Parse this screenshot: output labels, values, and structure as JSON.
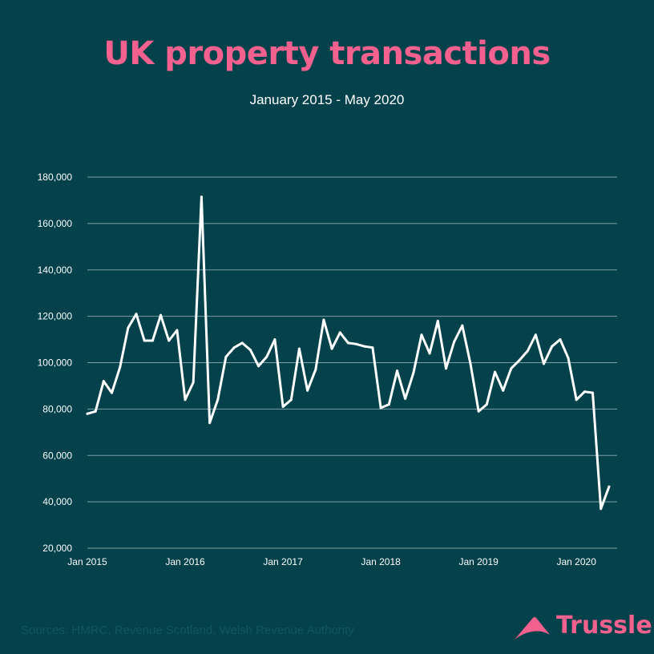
{
  "title": "UK property transactions",
  "subtitle": "January 2015 - May 2020",
  "source": "Sources: HMRC, Revenue Scotland, Welsh Revenue Authority",
  "brand": {
    "name": "Trussle",
    "color": "#f4618f",
    "icon": "trussle-roof-icon"
  },
  "colors": {
    "background": "#03414b",
    "title": "#f4618f",
    "line": "#ffffff",
    "grid": "#7f9ea3",
    "text": "#ffffff"
  },
  "chart_data": {
    "type": "line",
    "title": "",
    "xlabel": "",
    "ylabel": "",
    "ylim": [
      20000,
      180000
    ],
    "yticks": [
      20000,
      40000,
      60000,
      80000,
      100000,
      120000,
      140000,
      160000,
      180000
    ],
    "ytick_labels": [
      "20,000",
      "40,000",
      "60,000",
      "80,000",
      "100,000",
      "120,000",
      "140,000",
      "160,000",
      "180,000"
    ],
    "xtick_labels": [
      "Jan 2015",
      "Jan 2016",
      "Jan 2017",
      "Jan 2018",
      "Jan 2019",
      "Jan 2020"
    ],
    "grid": true,
    "legend": "none",
    "x": [
      "2015-01",
      "2015-02",
      "2015-03",
      "2015-04",
      "2015-05",
      "2015-06",
      "2015-07",
      "2015-08",
      "2015-09",
      "2015-10",
      "2015-11",
      "2015-12",
      "2016-01",
      "2016-02",
      "2016-03",
      "2016-04",
      "2016-05",
      "2016-06",
      "2016-07",
      "2016-08",
      "2016-09",
      "2016-10",
      "2016-11",
      "2016-12",
      "2017-01",
      "2017-02",
      "2017-03",
      "2017-04",
      "2017-05",
      "2017-06",
      "2017-07",
      "2017-08",
      "2017-09",
      "2017-10",
      "2017-11",
      "2017-12",
      "2018-01",
      "2018-02",
      "2018-03",
      "2018-04",
      "2018-05",
      "2018-06",
      "2018-07",
      "2018-08",
      "2018-09",
      "2018-10",
      "2018-11",
      "2018-12",
      "2019-01",
      "2019-02",
      "2019-03",
      "2019-04",
      "2019-05",
      "2019-06",
      "2019-07",
      "2019-08",
      "2019-09",
      "2019-10",
      "2019-11",
      "2019-12",
      "2020-01",
      "2020-02",
      "2020-03",
      "2020-04",
      "2020-05"
    ],
    "series": [
      {
        "values": [
          78000,
          79000,
          92000,
          87000,
          98000,
          115000,
          121000,
          109500,
          109500,
          120500,
          109500,
          114000,
          84000,
          91500,
          171500,
          74000,
          84000,
          102500,
          106500,
          108500,
          105500,
          98500,
          102500,
          110000,
          81000,
          84000,
          106000,
          88000,
          97000,
          118500,
          106000,
          113000,
          108500,
          108000,
          107000,
          106500,
          80500,
          82000,
          96500,
          84500,
          95500,
          112000,
          104000,
          118000,
          97500,
          109000,
          116000,
          99500,
          79000,
          82000,
          96000,
          88000,
          97500,
          101000,
          105000,
          112000,
          99500,
          107000,
          110000,
          102000,
          84000,
          87500,
          87000,
          37000,
          46500
        ]
      }
    ]
  }
}
